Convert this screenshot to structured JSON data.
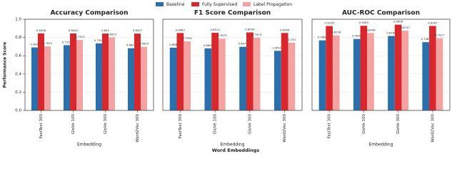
{
  "chart_data": [
    {
      "type": "bar",
      "title": "Accuracy Comparison",
      "xlabel": "Embedding",
      "ylabel": "Performance Score",
      "categories": [
        "FastText 300",
        "GloVe 100",
        "GloVe 300",
        "Word2Vec 300"
      ],
      "series": [
        {
          "name": "Baseline",
          "color": "#2a70ad",
          "values": [
            0.691,
            0.7155,
            0.7352,
            0.6823
          ]
        },
        {
          "name": "Fully Supervised",
          "color": "#d8282e",
          "values": [
            0.8448,
            0.8442,
            0.843,
            0.8427
          ]
        },
        {
          "name": "Label Propagation",
          "color": "#f4a2a2",
          "values": [
            0.7022,
            0.7723,
            0.8023,
            0.6979
          ]
        }
      ],
      "ylim": [
        0,
        1.0
      ],
      "yticks": [
        {
          "value": 0,
          "label": "0.0"
        },
        0.2,
        0.4,
        0.6,
        0.8,
        {
          "value": 1,
          "label": "1.0"
        }
      ],
      "grid": true
    },
    {
      "type": "bar",
      "title": "F1 Score Comparison",
      "xlabel": "Embedding",
      "categories": [
        "FastText 300",
        "GloVe 100",
        "GloVe 300",
        "Word2Vec 300"
      ],
      "series": [
        {
          "name": "Baseline",
          "color": "#2a70ad",
          "values": [
            0.688,
            0.6808,
            0.6979,
            0.6537
          ]
        },
        {
          "name": "Fully Supervised",
          "color": "#d8282e",
          "values": [
            0.8487,
            0.8514,
            0.8554,
            0.8495
          ]
        },
        {
          "name": "Label Propagation",
          "color": "#f4a2a2",
          "values": [
            0.7592,
            0.7873,
            0.7974,
            0.743
          ]
        }
      ],
      "ylim": [
        0,
        1.0
      ],
      "yticks": [
        {
          "value": 0,
          "label": "0.0"
        },
        0.2,
        0.4,
        0.6,
        0.8,
        {
          "value": 1,
          "label": "1.0"
        }
      ],
      "grid": true
    },
    {
      "type": "bar",
      "title": "AUC-ROC Comparison",
      "xlabel": "Embedding",
      "categories": [
        "FastText 300",
        "GloVe 100",
        "GloVe 300",
        "Word2Vec 300"
      ],
      "series": [
        {
          "name": "Baseline",
          "color": "#2a70ad",
          "values": [
            0.7686,
            0.7838,
            0.8168,
            0.7487
          ]
        },
        {
          "name": "Fully Supervised",
          "color": "#d8282e",
          "values": [
            0.9256,
            0.9283,
            0.9406,
            0.9267
          ]
        },
        {
          "name": "Label Propagation",
          "color": "#f4a2a2",
          "values": [
            0.8236,
            0.8496,
            0.8747,
            0.7927
          ]
        }
      ],
      "ylim": [
        0,
        1.0
      ],
      "yticks": [
        {
          "value": 0,
          "label": "0.0"
        },
        0.2,
        0.4,
        0.6,
        0.8,
        {
          "value": 1,
          "label": "1.0"
        }
      ],
      "grid": true
    }
  ],
  "figure": {
    "xlabel": "Word Embeddings"
  }
}
